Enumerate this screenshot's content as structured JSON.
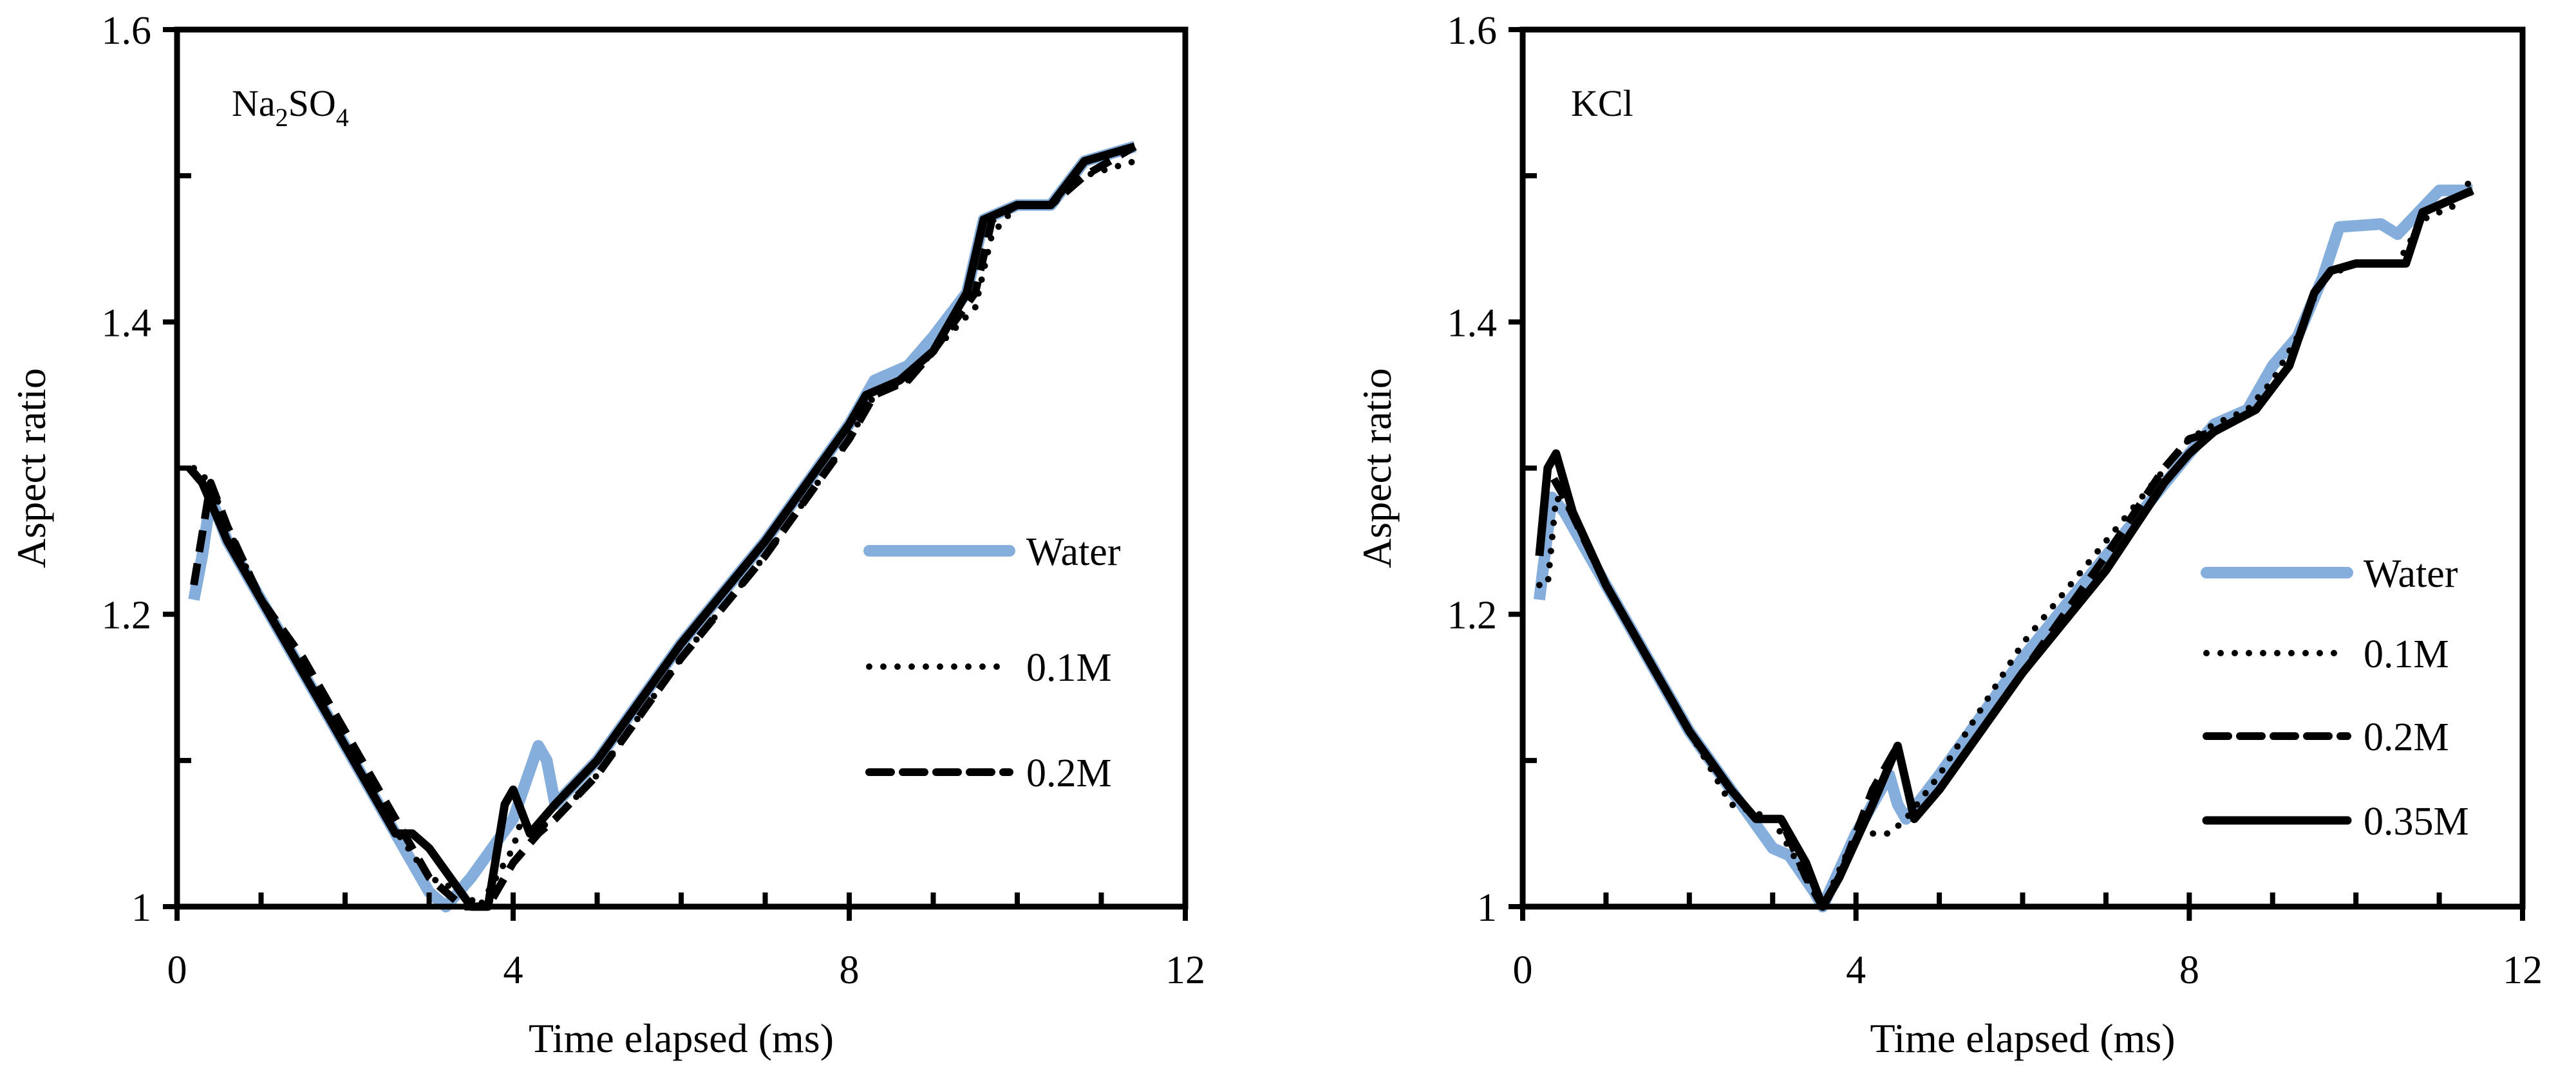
{
  "chart_data": [
    {
      "type": "line",
      "title": "Na2SO4",
      "title_main": "Na",
      "title_sub1": "2",
      "title_mid": "SO",
      "title_sub2": "4",
      "xlabel": "Time elapsed (ms)",
      "ylabel": "Aspect ratio",
      "xlim": [
        0,
        12
      ],
      "ylim": [
        1,
        1.6
      ],
      "xticks": [
        "0",
        "4",
        "8",
        "12"
      ],
      "yticks": [
        "1",
        "1.2",
        "1.4",
        "1.6"
      ],
      "grid": false,
      "legend_placement": "center-right",
      "series": [
        {
          "name": "Water",
          "color": "#86aedc",
          "style": "solid-thick",
          "in_legend": true,
          "x": [
            0.2,
            0.3,
            0.4,
            0.6,
            1,
            1.5,
            2,
            2.5,
            3,
            3.2,
            3.5,
            4,
            4.3,
            4.4,
            4.5,
            5,
            6,
            7,
            7.5,
            8,
            8.3,
            8.7,
            9,
            9.4,
            9.6,
            10,
            10.4,
            10.8,
            11.4
          ],
          "y": [
            1.21,
            1.24,
            1.28,
            1.25,
            1.21,
            1.16,
            1.11,
            1.06,
            1.01,
            1.0,
            1.02,
            1.06,
            1.11,
            1.1,
            1.07,
            1.1,
            1.18,
            1.25,
            1.29,
            1.33,
            1.36,
            1.37,
            1.39,
            1.42,
            1.47,
            1.48,
            1.48,
            1.51,
            1.52
          ]
        },
        {
          "name": "0.1M",
          "color": "#000000",
          "style": "dotted",
          "in_legend": true,
          "x": [
            0.2,
            0.4,
            0.6,
            1,
            1.5,
            2,
            2.5,
            3,
            3.4,
            3.6,
            3.8,
            4.0,
            4.1,
            4.2,
            4.5,
            5,
            6,
            7,
            7.5,
            8,
            8.3,
            8.7,
            9,
            9.5,
            9.7,
            10,
            10.4,
            10.8,
            11.4
          ],
          "y": [
            1.3,
            1.29,
            1.26,
            1.21,
            1.16,
            1.11,
            1.06,
            1.02,
            1.01,
            1.0,
            1.02,
            1.04,
            1.06,
            1.05,
            1.06,
            1.09,
            1.17,
            1.24,
            1.28,
            1.32,
            1.35,
            1.36,
            1.38,
            1.41,
            1.46,
            1.48,
            1.48,
            1.5,
            1.51
          ]
        },
        {
          "name": "0.2M",
          "color": "#000000",
          "style": "dashed",
          "in_legend": true,
          "x": [
            0.2,
            0.4,
            0.6,
            1,
            1.5,
            2,
            2.5,
            3,
            3.4,
            3.7,
            4.0,
            4.3,
            4.5,
            5,
            6,
            7,
            7.5,
            8,
            8.3,
            8.7,
            9,
            9.5,
            9.7,
            10,
            10.4,
            10.8,
            11.4
          ],
          "y": [
            1.22,
            1.29,
            1.26,
            1.21,
            1.17,
            1.12,
            1.07,
            1.02,
            1.0,
            1.0,
            1.03,
            1.05,
            1.06,
            1.09,
            1.17,
            1.24,
            1.28,
            1.32,
            1.35,
            1.36,
            1.38,
            1.42,
            1.47,
            1.48,
            1.48,
            1.5,
            1.52
          ]
        },
        {
          "name": "0.35M",
          "color": "#000000",
          "style": "solid",
          "in_legend": false,
          "x": [
            0.15,
            0.3,
            0.6,
            1,
            1.5,
            2,
            2.6,
            2.8,
            3.0,
            3.5,
            3.7,
            3.9,
            4.0,
            4.2,
            4.5,
            5,
            6,
            7,
            7.5,
            8,
            8.2,
            8.6,
            9,
            9.4,
            9.6,
            10,
            10.4,
            10.8,
            11.4
          ],
          "y": [
            1.3,
            1.29,
            1.25,
            1.21,
            1.16,
            1.11,
            1.05,
            1.05,
            1.04,
            1.0,
            1.0,
            1.07,
            1.08,
            1.05,
            1.07,
            1.1,
            1.18,
            1.25,
            1.29,
            1.33,
            1.35,
            1.36,
            1.38,
            1.42,
            1.47,
            1.48,
            1.48,
            1.51,
            1.52
          ]
        }
      ]
    },
    {
      "type": "line",
      "title": "KCl",
      "xlabel": "Time elapsed (ms)",
      "ylabel": "Aspect ratio",
      "xlim": [
        0,
        12
      ],
      "ylim": [
        1,
        1.6
      ],
      "xticks": [
        "0",
        "4",
        "8",
        "12"
      ],
      "yticks": [
        "1",
        "1.2",
        "1.4",
        "1.6"
      ],
      "grid": false,
      "legend_placement": "bottom-right",
      "series": [
        {
          "name": "Water",
          "color": "#86aedc",
          "style": "solid-thick",
          "in_legend": true,
          "x": [
            0.2,
            0.35,
            0.5,
            1,
            1.5,
            2,
            2.5,
            3,
            3.2,
            3.5,
            3.6,
            4,
            4.4,
            4.5,
            4.6,
            5,
            6,
            7,
            8,
            8.3,
            8.7,
            9,
            9.3,
            9.6,
            9.8,
            10.3,
            10.5,
            11,
            11.4
          ],
          "y": [
            1.21,
            1.28,
            1.27,
            1.22,
            1.17,
            1.12,
            1.08,
            1.04,
            1.035,
            1.01,
            1.0,
            1.05,
            1.09,
            1.07,
            1.06,
            1.09,
            1.17,
            1.24,
            1.31,
            1.33,
            1.34,
            1.37,
            1.39,
            1.43,
            1.465,
            1.467,
            1.46,
            1.49,
            1.49
          ]
        },
        {
          "name": "0.1M",
          "color": "#000000",
          "style": "dotted",
          "in_legend": true,
          "x": [
            0.2,
            0.3,
            0.4,
            0.6,
            1,
            1.5,
            2,
            2.5,
            3,
            3.4,
            3.6,
            4,
            4.4,
            4.6,
            5,
            6,
            7,
            8,
            8.3,
            8.7,
            9,
            9.3,
            9.6,
            10,
            10.5,
            10.8,
            11.2,
            11.4
          ],
          "y": [
            1.22,
            1.22,
            1.28,
            1.27,
            1.22,
            1.17,
            1.12,
            1.07,
            1.06,
            1.02,
            1.0,
            1.05,
            1.05,
            1.06,
            1.09,
            1.18,
            1.25,
            1.32,
            1.33,
            1.34,
            1.36,
            1.39,
            1.43,
            1.44,
            1.44,
            1.47,
            1.48,
            1.5
          ]
        },
        {
          "name": "0.2M",
          "color": "#000000",
          "style": "dashed",
          "in_legend": true,
          "x": [
            0.2,
            0.3,
            0.5,
            1,
            1.5,
            2,
            2.5,
            2.8,
            3.1,
            3.4,
            3.6,
            3.8,
            4.2,
            4.5,
            4.7,
            5,
            6,
            7,
            7.7,
            8,
            8.3,
            8.8,
            9.2,
            9.5,
            9.7,
            10,
            10.6,
            10.8,
            11.2,
            11.4
          ],
          "y": [
            1.24,
            1.3,
            1.28,
            1.22,
            1.17,
            1.12,
            1.08,
            1.06,
            1.06,
            1.02,
            1.0,
            1.02,
            1.08,
            1.11,
            1.06,
            1.08,
            1.16,
            1.24,
            1.3,
            1.32,
            1.325,
            1.34,
            1.37,
            1.42,
            1.435,
            1.44,
            1.44,
            1.475,
            1.485,
            1.49
          ]
        },
        {
          "name": "0.35M",
          "color": "#000000",
          "style": "solid",
          "in_legend": true,
          "x": [
            0.2,
            0.3,
            0.4,
            0.6,
            1,
            2,
            2.5,
            2.8,
            3.1,
            3.4,
            3.6,
            3.8,
            4.2,
            4.5,
            4.7,
            5,
            6,
            7,
            7.7,
            8,
            8.3,
            8.8,
            9.2,
            9.5,
            9.7,
            10,
            10.3,
            10.6,
            10.8,
            11.2,
            11.4
          ],
          "y": [
            1.24,
            1.3,
            1.31,
            1.27,
            1.22,
            1.12,
            1.08,
            1.06,
            1.06,
            1.03,
            1.0,
            1.02,
            1.07,
            1.11,
            1.06,
            1.08,
            1.16,
            1.23,
            1.29,
            1.31,
            1.325,
            1.34,
            1.37,
            1.42,
            1.435,
            1.44,
            1.44,
            1.44,
            1.475,
            1.485,
            1.49
          ]
        }
      ]
    }
  ]
}
